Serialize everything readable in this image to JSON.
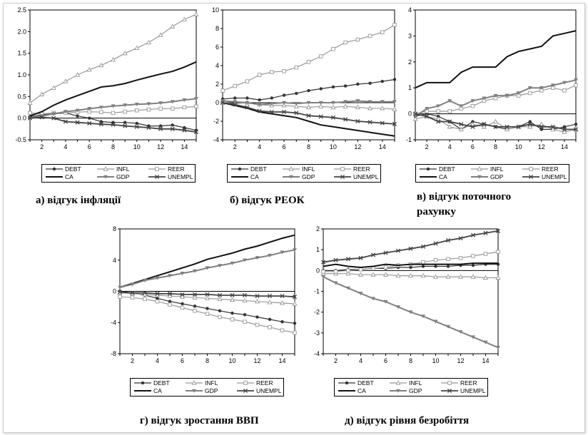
{
  "legend_labels": [
    "DEBT",
    "INFL",
    "REER",
    "CA",
    "GDP",
    "UNEMPL"
  ],
  "chart_data": [
    {
      "type": "line",
      "caption": "а) відгук інфляції",
      "x": [
        1,
        2,
        3,
        4,
        5,
        6,
        7,
        8,
        9,
        10,
        11,
        12,
        13,
        14,
        15
      ],
      "ylim": [
        -0.5,
        2.5
      ],
      "yticks": [
        "2.5",
        "2.0",
        "1.5",
        "1.0",
        "0.5",
        "0.0",
        "-0.5"
      ],
      "ytick_values": [
        2.5,
        2.0,
        1.5,
        1.0,
        0.5,
        0.0,
        -0.5
      ],
      "xticks": [
        "2",
        "4",
        "6",
        "8",
        "10",
        "12",
        "14"
      ],
      "series": [
        {
          "name": "DEBT",
          "values": [
            0.03,
            0.08,
            0.1,
            0.12,
            0.05,
            0.0,
            -0.08,
            -0.1,
            -0.1,
            -0.12,
            -0.18,
            -0.18,
            -0.16,
            -0.22,
            -0.28
          ]
        },
        {
          "name": "INFL",
          "values": [
            0.35,
            0.55,
            0.7,
            0.85,
            1.0,
            1.12,
            1.22,
            1.35,
            1.5,
            1.62,
            1.75,
            1.92,
            2.12,
            2.28,
            2.4
          ]
        },
        {
          "name": "REER",
          "values": [
            0.12,
            0.1,
            0.12,
            0.12,
            0.14,
            0.15,
            0.14,
            0.12,
            0.15,
            0.18,
            0.2,
            0.22,
            0.22,
            0.25,
            0.27
          ]
        },
        {
          "name": "CA",
          "values": [
            0.05,
            0.15,
            0.3,
            0.42,
            0.52,
            0.62,
            0.72,
            0.75,
            0.8,
            0.88,
            0.95,
            1.02,
            1.08,
            1.18,
            1.3
          ]
        },
        {
          "name": "GDP",
          "values": [
            0.0,
            0.05,
            0.1,
            0.15,
            0.18,
            0.22,
            0.25,
            0.28,
            0.3,
            0.32,
            0.33,
            0.35,
            0.38,
            0.42,
            0.45
          ]
        },
        {
          "name": "UNEMPL",
          "values": [
            0.0,
            0.02,
            0.0,
            -0.08,
            -0.1,
            -0.12,
            -0.14,
            -0.15,
            -0.18,
            -0.2,
            -0.22,
            -0.25,
            -0.25,
            -0.28,
            -0.32
          ]
        }
      ]
    },
    {
      "type": "line",
      "caption": "б) відгук РЕОК",
      "x": [
        1,
        2,
        3,
        4,
        5,
        6,
        7,
        8,
        9,
        10,
        11,
        12,
        13,
        14,
        15
      ],
      "ylim": [
        -4,
        10
      ],
      "yticks": [
        "10",
        "8",
        "6",
        "4",
        "2",
        "0",
        "-2",
        "-4"
      ],
      "ytick_values": [
        10,
        8,
        6,
        4,
        2,
        0,
        -2,
        -4
      ],
      "xticks": [
        "2",
        "4",
        "6",
        "8",
        "10",
        "12",
        "14"
      ],
      "series": [
        {
          "name": "DEBT",
          "values": [
            0.4,
            0.5,
            0.5,
            0.3,
            0.5,
            0.8,
            1.0,
            1.3,
            1.5,
            1.7,
            1.8,
            2.0,
            2.1,
            2.3,
            2.5
          ]
        },
        {
          "name": "INFL",
          "values": [
            0.0,
            -0.1,
            0.0,
            -0.2,
            -0.3,
            -0.3,
            -0.4,
            -0.5,
            -0.4,
            -0.5,
            -0.4,
            -0.5,
            -0.6,
            -0.6,
            -0.7
          ]
        },
        {
          "name": "REER",
          "values": [
            1.3,
            1.8,
            2.3,
            3.0,
            3.3,
            3.4,
            3.8,
            4.4,
            5.0,
            5.8,
            6.5,
            6.8,
            7.2,
            7.6,
            8.4
          ]
        },
        {
          "name": "CA",
          "values": [
            0.0,
            -0.3,
            -0.6,
            -1.0,
            -1.2,
            -1.4,
            -1.6,
            -2.0,
            -2.4,
            -2.6,
            -2.8,
            -3.0,
            -3.2,
            -3.4,
            -3.6
          ]
        },
        {
          "name": "GDP",
          "values": [
            0.2,
            0.1,
            0.0,
            -0.2,
            -0.1,
            0.0,
            -0.1,
            0.0,
            0.0,
            0.0,
            0.1,
            0.2,
            0.1,
            0.1,
            0.1
          ]
        },
        {
          "name": "UNEMPL",
          "values": [
            0.0,
            -0.2,
            -0.5,
            -0.9,
            -1.0,
            -1.0,
            -1.1,
            -1.4,
            -1.5,
            -1.6,
            -1.8,
            -2.0,
            -2.1,
            -2.2,
            -2.3
          ]
        }
      ]
    },
    {
      "type": "line",
      "caption": "в) відгук поточного рахунку",
      "caption_lines": [
        "в) відгук поточного",
        "рахунку"
      ],
      "x": [
        1,
        2,
        3,
        4,
        5,
        6,
        7,
        8,
        9,
        10,
        11,
        12,
        13,
        14,
        15
      ],
      "ylim": [
        -1,
        4
      ],
      "yticks": [
        "4",
        "3",
        "2",
        "1",
        "0",
        "-1"
      ],
      "ytick_values": [
        4,
        3,
        2,
        1,
        0,
        -1
      ],
      "xticks": [
        "2",
        "4",
        "6",
        "8",
        "10",
        "12",
        "14"
      ],
      "series": [
        {
          "name": "DEBT",
          "values": [
            -0.1,
            0.0,
            -0.1,
            -0.3,
            -0.6,
            -0.3,
            -0.4,
            -0.5,
            -0.6,
            -0.5,
            -0.3,
            -0.6,
            -0.6,
            -0.5,
            -0.4
          ]
        },
        {
          "name": "INFL",
          "values": [
            -0.2,
            -0.1,
            -0.2,
            -0.5,
            -0.6,
            -0.4,
            -0.5,
            -0.3,
            -0.6,
            -0.5,
            -0.5,
            -0.4,
            -0.6,
            -0.7,
            -0.6
          ]
        },
        {
          "name": "REER",
          "values": [
            0.0,
            0.1,
            0.1,
            0.1,
            0.2,
            0.3,
            0.5,
            0.6,
            0.7,
            0.7,
            0.8,
            0.9,
            1.0,
            0.9,
            1.1
          ]
        },
        {
          "name": "CA",
          "values": [
            1.0,
            1.2,
            1.2,
            1.2,
            1.6,
            1.8,
            1.8,
            1.8,
            2.2,
            2.4,
            2.5,
            2.6,
            3.0,
            3.1,
            3.2
          ]
        },
        {
          "name": "GDP",
          "values": [
            -0.1,
            0.2,
            0.3,
            0.5,
            0.3,
            0.5,
            0.6,
            0.7,
            0.7,
            0.8,
            1.0,
            1.0,
            1.1,
            1.2,
            1.3
          ]
        },
        {
          "name": "UNEMPL",
          "values": [
            0.0,
            -0.1,
            -0.3,
            -0.3,
            -0.4,
            -0.5,
            -0.4,
            -0.5,
            -0.5,
            -0.5,
            -0.4,
            -0.5,
            -0.5,
            -0.6,
            -0.6
          ]
        }
      ]
    },
    {
      "type": "line",
      "caption": "г) відгук зростання ВВП",
      "x": [
        1,
        2,
        3,
        4,
        5,
        6,
        7,
        8,
        9,
        10,
        11,
        12,
        13,
        14,
        15
      ],
      "ylim": [
        -8,
        8
      ],
      "yticks": [
        "8",
        "4",
        "0",
        "-4",
        "-8"
      ],
      "ytick_values": [
        8,
        4,
        0,
        -4,
        -8
      ],
      "xticks": [
        "2",
        "4",
        "6",
        "8",
        "10",
        "12",
        "14"
      ],
      "series": [
        {
          "name": "DEBT",
          "values": [
            0.0,
            -0.2,
            -0.5,
            -0.9,
            -1.3,
            -1.6,
            -1.9,
            -2.2,
            -2.5,
            -2.8,
            -3.0,
            -3.3,
            -3.6,
            -3.9,
            -4.1
          ]
        },
        {
          "name": "INFL",
          "values": [
            -0.2,
            -0.3,
            -0.4,
            -0.5,
            -0.6,
            -0.7,
            -0.8,
            -0.9,
            -1.0,
            -1.1,
            -1.2,
            -1.3,
            -1.4,
            -1.5,
            -1.6
          ]
        },
        {
          "name": "REER",
          "values": [
            -0.7,
            -0.8,
            -1.0,
            -1.3,
            -1.7,
            -2.1,
            -2.5,
            -2.9,
            -3.3,
            -3.6,
            -3.9,
            -4.3,
            -4.6,
            -5.0,
            -5.3
          ]
        },
        {
          "name": "CA",
          "values": [
            0.5,
            1.0,
            1.5,
            2.0,
            2.5,
            3.0,
            3.5,
            4.1,
            4.5,
            4.9,
            5.4,
            5.8,
            6.3,
            6.8,
            7.2
          ]
        },
        {
          "name": "GDP",
          "values": [
            0.5,
            0.9,
            1.4,
            1.7,
            2.0,
            2.3,
            2.6,
            3.0,
            3.3,
            3.6,
            4.0,
            4.3,
            4.6,
            5.0,
            5.3
          ]
        },
        {
          "name": "UNEMPL",
          "values": [
            -0.1,
            -0.2,
            -0.2,
            -0.3,
            -0.3,
            -0.4,
            -0.4,
            -0.4,
            -0.5,
            -0.5,
            -0.5,
            -0.6,
            -0.6,
            -0.6,
            -0.7
          ]
        }
      ]
    },
    {
      "type": "line",
      "caption": "д) відгук рівня безробіття",
      "x": [
        1,
        2,
        3,
        4,
        5,
        6,
        7,
        8,
        9,
        10,
        11,
        12,
        13,
        14,
        15
      ],
      "ylim": [
        -4,
        2
      ],
      "yticks": [
        "2",
        "1",
        "0",
        "-1",
        "-2",
        "-3",
        "-4"
      ],
      "ytick_values": [
        2,
        1,
        0,
        -1,
        -2,
        -3,
        -4
      ],
      "xticks": [
        "2",
        "4",
        "6",
        "8",
        "10",
        "12",
        "14"
      ],
      "series": [
        {
          "name": "DEBT",
          "values": [
            0.0,
            0.0,
            0.05,
            0.05,
            0.1,
            0.1,
            0.15,
            0.15,
            0.2,
            0.2,
            0.2,
            0.25,
            0.25,
            0.3,
            0.3
          ]
        },
        {
          "name": "INFL",
          "values": [
            -0.15,
            -0.15,
            -0.15,
            -0.2,
            -0.2,
            -0.2,
            -0.25,
            -0.25,
            -0.25,
            -0.3,
            -0.3,
            -0.3,
            -0.3,
            -0.35,
            -0.35
          ]
        },
        {
          "name": "REER",
          "values": [
            -0.05,
            -0.05,
            0.0,
            0.05,
            0.1,
            0.15,
            0.25,
            0.3,
            0.4,
            0.5,
            0.55,
            0.6,
            0.7,
            0.8,
            0.9
          ]
        },
        {
          "name": "CA",
          "values": [
            0.2,
            0.3,
            0.2,
            0.15,
            0.2,
            0.3,
            0.25,
            0.3,
            0.3,
            0.3,
            0.3,
            0.3,
            0.35,
            0.35,
            0.35
          ]
        },
        {
          "name": "GDP",
          "values": [
            -0.3,
            -0.6,
            -0.85,
            -1.1,
            -1.35,
            -1.5,
            -1.75,
            -2.0,
            -2.2,
            -2.45,
            -2.7,
            -2.95,
            -3.2,
            -3.45,
            -3.7
          ]
        },
        {
          "name": "UNEMPL",
          "values": [
            0.4,
            0.5,
            0.55,
            0.6,
            0.75,
            0.85,
            0.95,
            1.05,
            1.15,
            1.3,
            1.45,
            1.55,
            1.7,
            1.8,
            1.9
          ]
        }
      ]
    }
  ]
}
